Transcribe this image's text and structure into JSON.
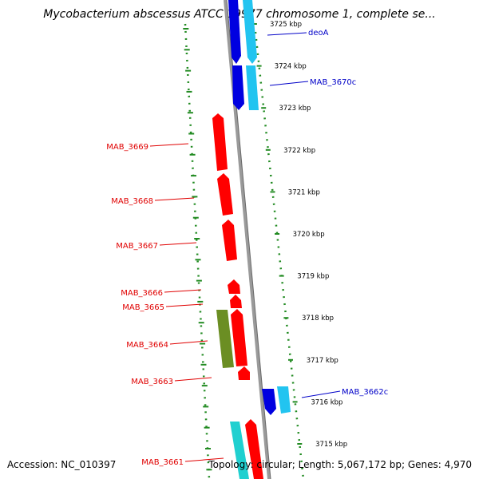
{
  "title": "Mycobacterium abscessus ATCC 19977 chromosome 1, complete se...",
  "footer": {
    "accession": "Accession: NC_010397",
    "topology": "Topology: circular; Length: 5,067,172 bp; Genes: 4,970"
  },
  "colors": {
    "forward_gene": "#0000e0",
    "forward_gene_light": "#22c4f0",
    "reverse_gene": "#ff0000",
    "other_gene": "#6b8e23",
    "cyan_gene": "#20d0d0",
    "backbone": "#808080",
    "dots": "#228b22",
    "red_label": "#e00000",
    "blue_label": "#0000c8"
  },
  "kbp_labels": [
    "3725 kbp",
    "3724 kbp",
    "3723 kbp",
    "3722 kbp",
    "3721 kbp",
    "3720 kbp",
    "3719 kbp",
    "3718 kbp",
    "3717 kbp",
    "3716 kbp",
    "3715 kbp"
  ],
  "genes_left": [
    {
      "label": "MAB_3669"
    },
    {
      "label": "MAB_3668"
    },
    {
      "label": "MAB_3667"
    },
    {
      "label": "MAB_3666"
    },
    {
      "label": "MAB_3665"
    },
    {
      "label": "MAB_3664"
    },
    {
      "label": "MAB_3663"
    },
    {
      "label": "MAB_3661"
    }
  ],
  "genes_right": [
    {
      "label": "deoA"
    },
    {
      "label": "MAB_3670c"
    },
    {
      "label": "MAB_3662c"
    }
  ]
}
